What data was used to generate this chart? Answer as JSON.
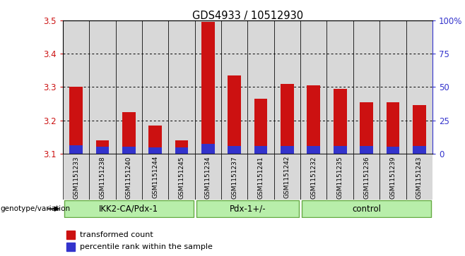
{
  "title": "GDS4933 / 10512930",
  "samples": [
    "GSM1151233",
    "GSM1151238",
    "GSM1151240",
    "GSM1151244",
    "GSM1151245",
    "GSM1151234",
    "GSM1151237",
    "GSM1151241",
    "GSM1151242",
    "GSM1151232",
    "GSM1151235",
    "GSM1151236",
    "GSM1151239",
    "GSM1151243"
  ],
  "red_values": [
    3.3,
    3.14,
    3.225,
    3.185,
    3.14,
    3.495,
    3.335,
    3.265,
    3.31,
    3.305,
    3.295,
    3.255,
    3.255,
    3.245
  ],
  "blue_values": [
    3.125,
    3.12,
    3.12,
    3.118,
    3.118,
    3.13,
    3.122,
    3.122,
    3.122,
    3.122,
    3.122,
    3.122,
    3.12,
    3.122
  ],
  "ymin": 3.1,
  "ymax": 3.5,
  "y_ticks": [
    3.1,
    3.2,
    3.3,
    3.4,
    3.5
  ],
  "right_ticks": [
    0,
    25,
    50,
    75,
    100
  ],
  "right_tick_labels": [
    "0",
    "25",
    "50",
    "75",
    "100%"
  ],
  "groups": [
    {
      "label": "IKK2-CA/Pdx-1",
      "start": 0,
      "end": 5
    },
    {
      "label": "Pdx-1+/-",
      "start": 5,
      "end": 9
    },
    {
      "label": "control",
      "start": 9,
      "end": 14
    }
  ],
  "bar_color_red": "#cc1111",
  "bar_color_blue": "#3333cc",
  "cell_bg_color": "#d8d8d8",
  "plot_bg": "#ffffff",
  "group_fill": "#b8eeaa",
  "group_edge": "#66aa44",
  "genotype_label": "genotype/variation",
  "legend_red": "transformed count",
  "legend_blue": "percentile rank within the sample",
  "bar_width": 0.5
}
